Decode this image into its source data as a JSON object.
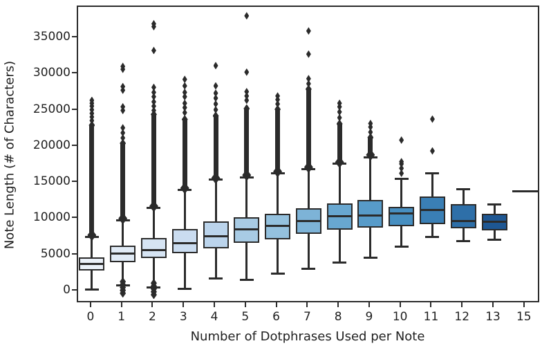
{
  "chart_data": {
    "type": "boxplot",
    "title": "",
    "xlabel": "Number of Dotphrases Used per Note",
    "ylabel": "Note Length (# of Characters)",
    "categories": [
      "0",
      "1",
      "2",
      "3",
      "4",
      "5",
      "6",
      "7",
      "8",
      "9",
      "10",
      "11",
      "12",
      "13",
      "15"
    ],
    "y_ticks": [
      0,
      5000,
      10000,
      15000,
      20000,
      25000,
      30000,
      35000
    ],
    "y_tick_labels": [
      "0",
      "5000",
      "10000",
      "15000",
      "20000",
      "25000",
      "30000",
      "35000"
    ],
    "ylim": [
      -1750,
      39330
    ],
    "grid": false,
    "legend": "none",
    "line_color": "#2b2b2b",
    "palette": [
      "#ebf1f9",
      "#e1ebf6",
      "#d6e4f3",
      "#cadcf0",
      "#bbd4ec",
      "#a8cbe4",
      "#94c1de",
      "#7db3d7",
      "#68a7d0",
      "#579bc9",
      "#478fc1",
      "#3a7fb5",
      "#2e6fa8",
      "#1e5793",
      "#123f77"
    ],
    "boxes": [
      {
        "label": "0",
        "whisker_low": 200,
        "q1": 2800,
        "median": 3800,
        "q3": 4700,
        "whisker_high": 7450,
        "outliers_high_dense": [
          7700,
          23000
        ],
        "outliers_high": [
          23600,
          24100,
          24600,
          25100,
          25600,
          26000,
          26400
        ],
        "outliers_low": []
      },
      {
        "label": "1",
        "whisker_low": 750,
        "q1": 4000,
        "median": 5150,
        "q3": 6250,
        "whisker_high": 9800,
        "outliers_high_dense": [
          10000,
          20500
        ],
        "outliers_high": [
          21200,
          21900,
          22600,
          25000,
          25500,
          27800,
          28300,
          30700,
          31100
        ],
        "outliers_low": [
          1300,
          900,
          500,
          100,
          -300
        ]
      },
      {
        "label": "2",
        "whisker_low": 520,
        "q1": 4600,
        "median": 5700,
        "q3": 7300,
        "whisker_high": 11500,
        "outliers_high_dense": [
          11700,
          24500
        ],
        "outliers_high": [
          25000,
          25600,
          26200,
          26900,
          27500,
          28200,
          33300,
          36600,
          37000
        ],
        "outliers_low": [
          1100,
          700,
          300,
          -100,
          -500
        ]
      },
      {
        "label": "3",
        "whisker_low": 350,
        "q1": 5250,
        "median": 6600,
        "q3": 8550,
        "whisker_high": 14000,
        "outliers_high_dense": [
          14200,
          23800
        ],
        "outliers_high": [
          24700,
          25400,
          26000,
          26900,
          27500,
          28400,
          29300
        ],
        "outliers_low": []
      },
      {
        "label": "4",
        "whisker_low": 1790,
        "q1": 5900,
        "median": 7600,
        "q3": 9600,
        "whisker_high": 15400,
        "outliers_high_dense": [
          15600,
          24300
        ],
        "outliers_high": [
          25100,
          25900,
          26700,
          27400,
          28400,
          31200
        ],
        "outliers_low": []
      },
      {
        "label": "5",
        "whisker_low": 1530,
        "q1": 6700,
        "median": 8500,
        "q3": 10250,
        "whisker_high": 15750,
        "outliers_high_dense": [
          16000,
          25300
        ],
        "outliers_high": [
          26400,
          27000,
          27600,
          30300,
          38100
        ],
        "outliers_low": []
      },
      {
        "label": "6",
        "whisker_low": 2430,
        "q1": 7200,
        "median": 9000,
        "q3": 10730,
        "whisker_high": 16300,
        "outliers_high_dense": [
          16500,
          25200
        ],
        "outliers_high": [
          25900,
          26500,
          27000
        ],
        "outliers_low": []
      },
      {
        "label": "7",
        "whisker_low": 3130,
        "q1": 7900,
        "median": 9700,
        "q3": 11440,
        "whisker_high": 16900,
        "outliers_high_dense": [
          17100,
          28000
        ],
        "outliers_high": [
          28700,
          29400,
          32800,
          36000
        ],
        "outliers_low": []
      },
      {
        "label": "8",
        "whisker_low": 3970,
        "q1": 8500,
        "median": 10400,
        "q3": 12170,
        "whisker_high": 17600,
        "outliers_high_dense": [
          17800,
          23200
        ],
        "outliers_high": [
          24000,
          24800,
          25500,
          26000
        ],
        "outliers_low": []
      },
      {
        "label": "9",
        "whisker_low": 4600,
        "q1": 8800,
        "median": 10480,
        "q3": 12590,
        "whisker_high": 18550,
        "outliers_high_dense": [
          18800,
          21300
        ],
        "outliers_high": [
          22000,
          22700,
          23200
        ],
        "outliers_low": []
      },
      {
        "label": "10",
        "whisker_low": 6170,
        "q1": 8980,
        "median": 10730,
        "q3": 11690,
        "whisker_high": 15520,
        "outliers_high_dense": null,
        "outliers_high": [
          16300,
          17000,
          17600,
          17900,
          20900
        ],
        "outliers_low": []
      },
      {
        "label": "11",
        "whisker_low": 7470,
        "q1": 9290,
        "median": 11210,
        "q3": 13070,
        "whisker_high": 16320,
        "outliers_high_dense": null,
        "outliers_high": [
          19400,
          23800
        ],
        "outliers_low": []
      },
      {
        "label": "12",
        "whisker_low": 6960,
        "q1": 8660,
        "median": 9680,
        "q3": 12070,
        "whisker_high": 14080,
        "outliers_high_dense": null,
        "outliers_high": [],
        "outliers_low": []
      },
      {
        "label": "13",
        "whisker_low": 7130,
        "q1": 8400,
        "median": 9550,
        "q3": 10730,
        "whisker_high": 12010,
        "outliers_high_dense": null,
        "outliers_high": [],
        "outliers_low": []
      },
      {
        "label": "15",
        "whisker_low": 13830,
        "q1": 13830,
        "median": 13830,
        "q3": 13830,
        "whisker_high": 13830,
        "outliers_high_dense": null,
        "outliers_high": [],
        "outliers_low": []
      }
    ]
  }
}
